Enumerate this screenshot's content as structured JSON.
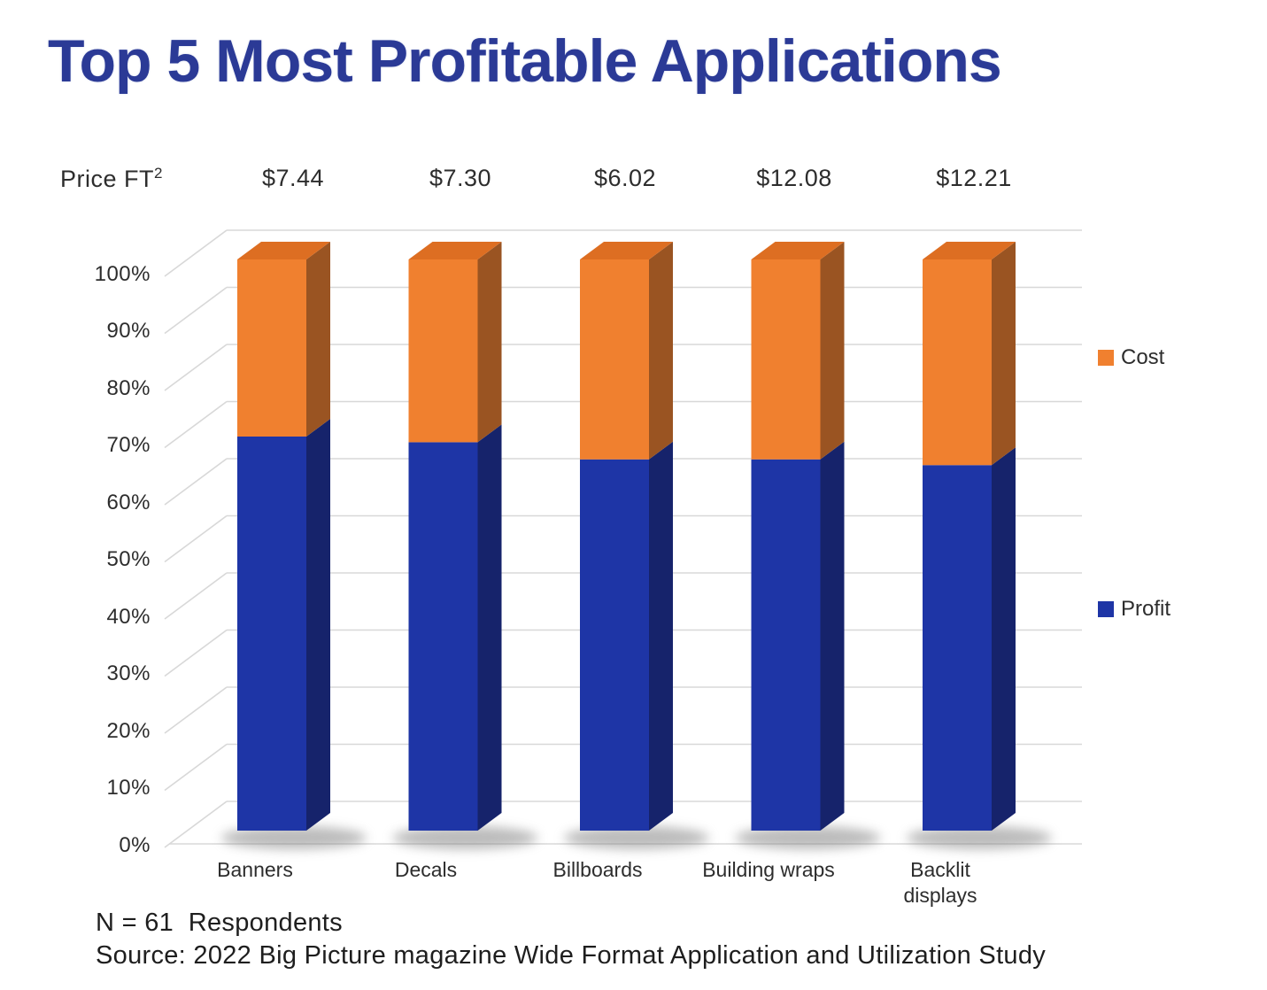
{
  "title": "Top 5 Most Profitable Applications",
  "price_row": {
    "label": "Price FT",
    "superscript": "2",
    "values": [
      "$7.44",
      "$7.30",
      "$6.02",
      "$12.08",
      "$12.21"
    ]
  },
  "chart_data": {
    "type": "bar",
    "variant": "3d-stacked-column",
    "stacked": true,
    "title": "Top 5 Most Profitable Applications",
    "categories": [
      "Banners",
      "Decals",
      "Billboards",
      "Building wraps",
      "Backlit displays"
    ],
    "series": [
      {
        "name": "Profit",
        "color": "#1E35A6",
        "values": [
          69,
          68,
          65,
          65,
          64
        ]
      },
      {
        "name": "Cost",
        "color": "#F0802F",
        "values": [
          31,
          32,
          35,
          35,
          36
        ]
      }
    ],
    "unit": "%",
    "price_per_ft2": [
      "$7.44",
      "$7.30",
      "$6.02",
      "$12.08",
      "$12.21"
    ],
    "y_ticks": [
      "0%",
      "10%",
      "20%",
      "30%",
      "40%",
      "50%",
      "60%",
      "70%",
      "80%",
      "90%",
      "100%"
    ],
    "ylim": [
      0,
      100
    ],
    "grid": true,
    "legend_position": "right"
  },
  "legend": {
    "items": [
      {
        "label": "Cost",
        "color": "#F0802F"
      },
      {
        "label": "Profit",
        "color": "#1E35A6"
      }
    ]
  },
  "footer": {
    "line1": "N = 61  Respondents",
    "line2": "Source: 2022 Big Picture magazine Wide Format Application and Utilization Study"
  },
  "colors": {
    "title": "#2B3A96",
    "text": "#2D2D2D",
    "grid": "#D8D8D8",
    "profit_front": "#1E35A6",
    "profit_side": "#16236B",
    "cost_front": "#F0802F",
    "cost_side": "#9A5422",
    "cost_top": "#DD6E22"
  }
}
